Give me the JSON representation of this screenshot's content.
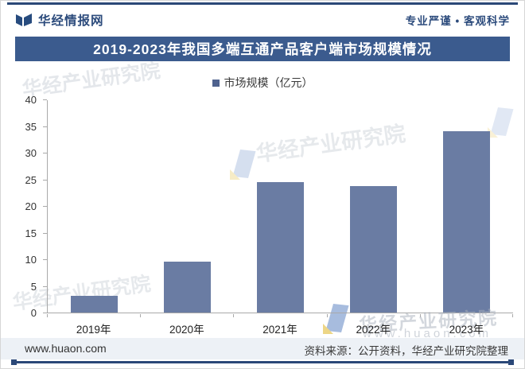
{
  "header": {
    "brand": "华经情报网",
    "slogan": "专业严谨 • 客观科学"
  },
  "title": "2019-2023年我国多端互通产品客户端市场规模情况",
  "legend": {
    "label": "市场规模（亿元）"
  },
  "chart_data": {
    "type": "bar",
    "title": "2019-2023年我国多端互通产品客户端市场规模情况",
    "series_name": "市场规模（亿元）",
    "categories": [
      "2019年",
      "2020年",
      "2021年",
      "2022年",
      "2023年"
    ],
    "values": [
      3.1,
      9.5,
      24.5,
      23.8,
      34.0
    ],
    "xlabel": "",
    "ylabel": "",
    "ylim": [
      0,
      40
    ],
    "yticks": [
      0,
      5,
      10,
      15,
      20,
      25,
      30,
      35,
      40
    ],
    "grid": false,
    "legend_position": "top",
    "bar_color": "#6a7ca3"
  },
  "watermarks": {
    "text": "华经产业研究院",
    "site": "www.huaon.com"
  },
  "footer": {
    "site": "www.huaon.com",
    "source": "资料来源：公开资料，华经产业研究院整理"
  },
  "colors": {
    "banner": "#3b5b8e",
    "bar": "#6a7ca3",
    "rule": "#2b4878",
    "footer_band": "#edf1f6",
    "brand_text": "#2c4b7c"
  }
}
